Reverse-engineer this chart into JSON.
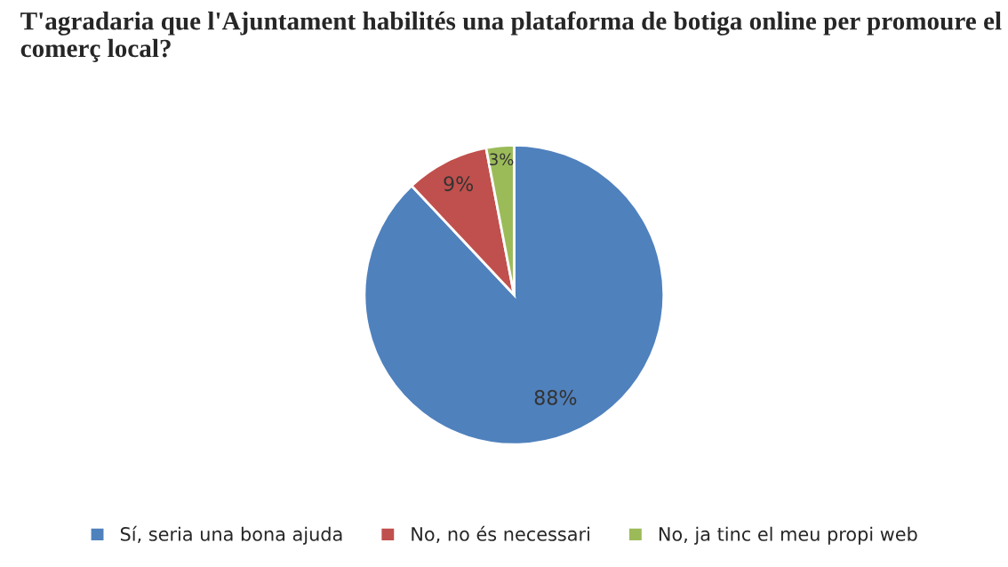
{
  "chart_data": {
    "type": "pie",
    "title": "T'agradaria que l'Ajuntament habilités una plataforma de botiga online per promoure el comerç local?",
    "categories": [
      "Sí, seria una bona ajuda",
      "No, no és necessari",
      "No, ja tinc el meu propi web"
    ],
    "values": [
      88,
      9,
      3
    ],
    "colors": [
      "#4f81bd",
      "#c0504d",
      "#9bbb59"
    ],
    "value_labels": [
      "88%",
      "9%",
      "3%"
    ],
    "legend": "bottom"
  }
}
